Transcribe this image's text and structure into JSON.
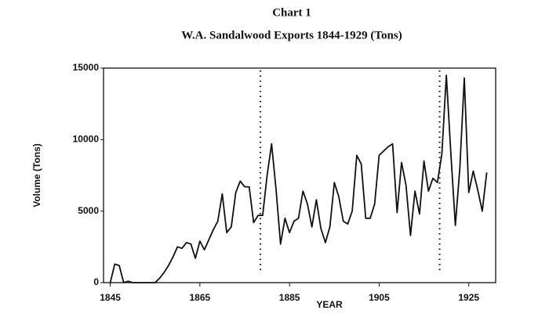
{
  "chart_data": {
    "type": "line",
    "title": "Chart 1",
    "subtitle": "W.A. Sandalwood Exports 1844-1929 (Tons)",
    "x_label": "YEAR",
    "y_label": "Volume (Tons)",
    "x": [
      1845,
      1846,
      1847,
      1848,
      1849,
      1850,
      1851,
      1852,
      1853,
      1854,
      1855,
      1856,
      1857,
      1858,
      1859,
      1860,
      1861,
      1862,
      1863,
      1864,
      1865,
      1866,
      1867,
      1868,
      1869,
      1870,
      1871,
      1872,
      1873,
      1874,
      1875,
      1876,
      1877,
      1878,
      1879,
      1880,
      1881,
      1882,
      1883,
      1884,
      1885,
      1886,
      1887,
      1888,
      1889,
      1890,
      1891,
      1892,
      1893,
      1894,
      1895,
      1896,
      1897,
      1898,
      1899,
      1900,
      1901,
      1902,
      1903,
      1904,
      1905,
      1906,
      1907,
      1908,
      1909,
      1910,
      1911,
      1912,
      1913,
      1914,
      1915,
      1916,
      1917,
      1918,
      1919,
      1920,
      1921,
      1922,
      1923,
      1924,
      1925,
      1926,
      1927,
      1928,
      1929
    ],
    "series": [
      {
        "name": "Volume",
        "color": "#111111",
        "values": [
          0,
          1300,
          1200,
          0,
          100,
          0,
          0,
          0,
          0,
          0,
          0,
          300,
          700,
          1200,
          1800,
          2500,
          2400,
          2800,
          2700,
          1700,
          2900,
          2300,
          3000,
          3700,
          4300,
          6200,
          3500,
          3900,
          6300,
          7100,
          6700,
          6700,
          4200,
          4700,
          4700,
          7500,
          9700,
          6500,
          2700,
          4500,
          3500,
          4300,
          4500,
          6400,
          5500,
          3900,
          5800,
          3800,
          2800,
          3900,
          7000,
          6000,
          4300,
          4100,
          5000,
          8900,
          8300,
          4500,
          4500,
          5500,
          8900,
          9200,
          9500,
          9700,
          4900,
          8400,
          6800,
          3300,
          6400,
          4800,
          8500,
          6400,
          7300,
          7000,
          9000,
          14500,
          9000,
          4000,
          8000,
          14300,
          6300,
          7800,
          6500,
          5000,
          7700
        ]
      }
    ],
    "reference_lines": [
      1878.5,
      1918.5
    ],
    "xlim": [
      1843.5,
      1931
    ],
    "xticks": [
      1845,
      1865,
      1885,
      1905,
      1925
    ],
    "ylim": [
      0,
      15000
    ],
    "yticks": [
      0,
      5000,
      10000,
      15000
    ],
    "grid": false
  }
}
